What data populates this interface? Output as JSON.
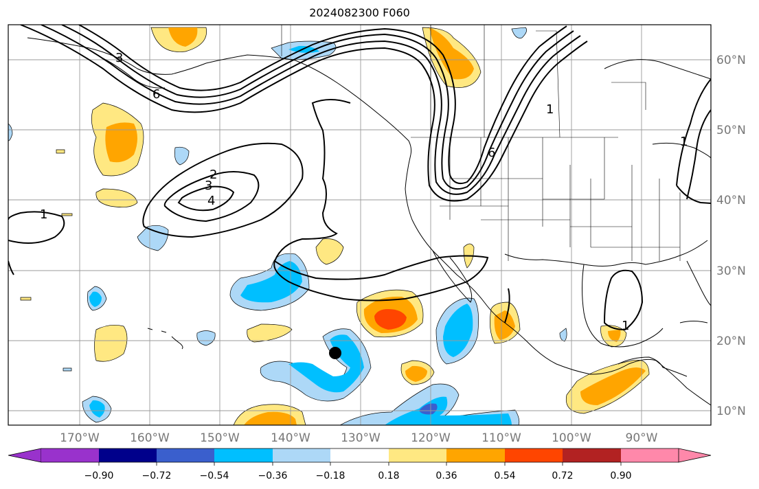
{
  "title": "2024082300 F060",
  "map": {
    "lon_range": [
      -180,
      -80
    ],
    "lat_range": [
      8,
      65
    ],
    "lon_labels": [
      "170°W",
      "160°W",
      "150°W",
      "140°W",
      "130°W",
      "120°W",
      "110°W",
      "100°W",
      "90°W"
    ],
    "lat_labels": [
      "10°N",
      "20°N",
      "30°N",
      "40°N",
      "50°N",
      "60°N"
    ],
    "grid": true,
    "grid_color": "#999999"
  },
  "contour_labels": [
    "1",
    "2",
    "3",
    "4",
    "6",
    "1",
    "6",
    "1",
    "1",
    "3"
  ],
  "colorbar": {
    "tick_labels": [
      "−0.90",
      "−0.72",
      "−0.54",
      "−0.36",
      "−0.18",
      "0.18",
      "0.36",
      "0.54",
      "0.72",
      "0.90"
    ],
    "colors": [
      "#9932cc",
      "#00008b",
      "#3a5fcd",
      "#00bfff",
      "#add8f7",
      "#ffffff",
      "#ffe882",
      "#ffa500",
      "#ff4500",
      "#b22222",
      "#ff88aa"
    ]
  },
  "marker": {
    "label": "storm-position",
    "lon": -134,
    "lat": 18
  }
}
